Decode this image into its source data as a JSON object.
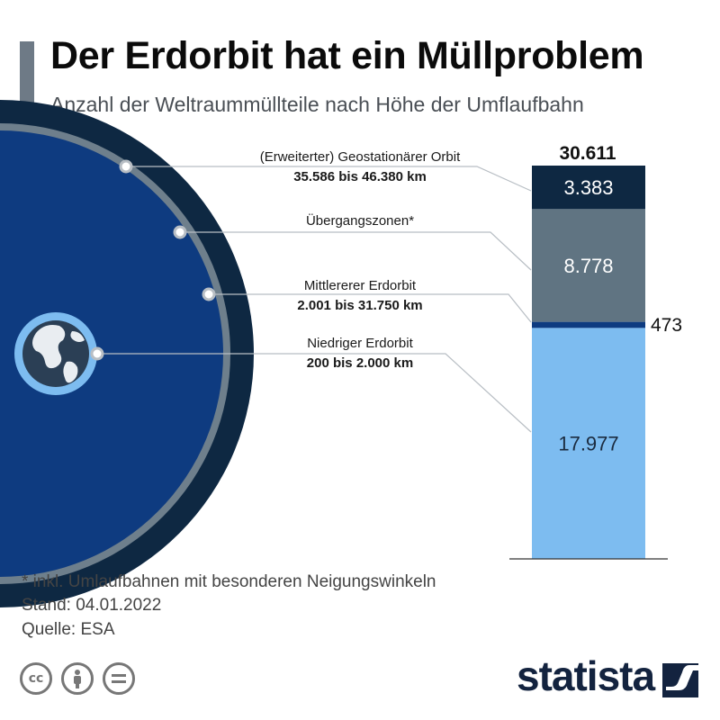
{
  "header": {
    "title": "Der Erdorbit hat ein Müllproblem",
    "subtitle": "Anzahl der Weltraummüllteile nach Höhe der Umflaufbahn"
  },
  "orbits": [
    {
      "name": "(Erweiterter) Geostationärer Orbit",
      "range": "35.586 bis 46.380 km"
    },
    {
      "name": "Übergangszonen*",
      "range": ""
    },
    {
      "name": "Mittlererer Erdorbit",
      "range": "2.001 bis 31.750 km"
    },
    {
      "name": "Niedriger Erdorbit",
      "range": "200 bis 2.000 km"
    }
  ],
  "chart_data": {
    "type": "bar",
    "stacked": true,
    "total_label": "30.611",
    "total": 30611,
    "segments": [
      {
        "name": "Niedriger Erdorbit",
        "value": 17977,
        "label": "17.977",
        "color": "#7dbcf0"
      },
      {
        "name": "Mittlererer Erdorbit",
        "value": 473,
        "label": "473",
        "color": "#0e3b80"
      },
      {
        "name": "Übergangszonen",
        "value": 8778,
        "label": "8.778",
        "color": "#607482"
      },
      {
        "name": "(Erweiterter) Geostationärer Orbit",
        "value": 3383,
        "label": "3.383",
        "color": "#0e2842"
      }
    ]
  },
  "footer": {
    "note": "* inkl. Umlaufbahnen mit besonderen Neigungswinkeln",
    "stand": "Stand: 04.01.2022",
    "source": "Quelle: ESA",
    "brand": "statista"
  },
  "colors": {
    "geo_ring": "#0e2842",
    "transition_ring": "#6e7f8c",
    "meo_fill": "#0e3b80",
    "leo_ring": "#7dbcf0",
    "earth": "#2b3f55",
    "leader_line": "#b8bec4"
  },
  "icons": [
    "creative-commons-icon",
    "attribution-icon",
    "no-derivatives-icon",
    "statista-logo-icon"
  ]
}
